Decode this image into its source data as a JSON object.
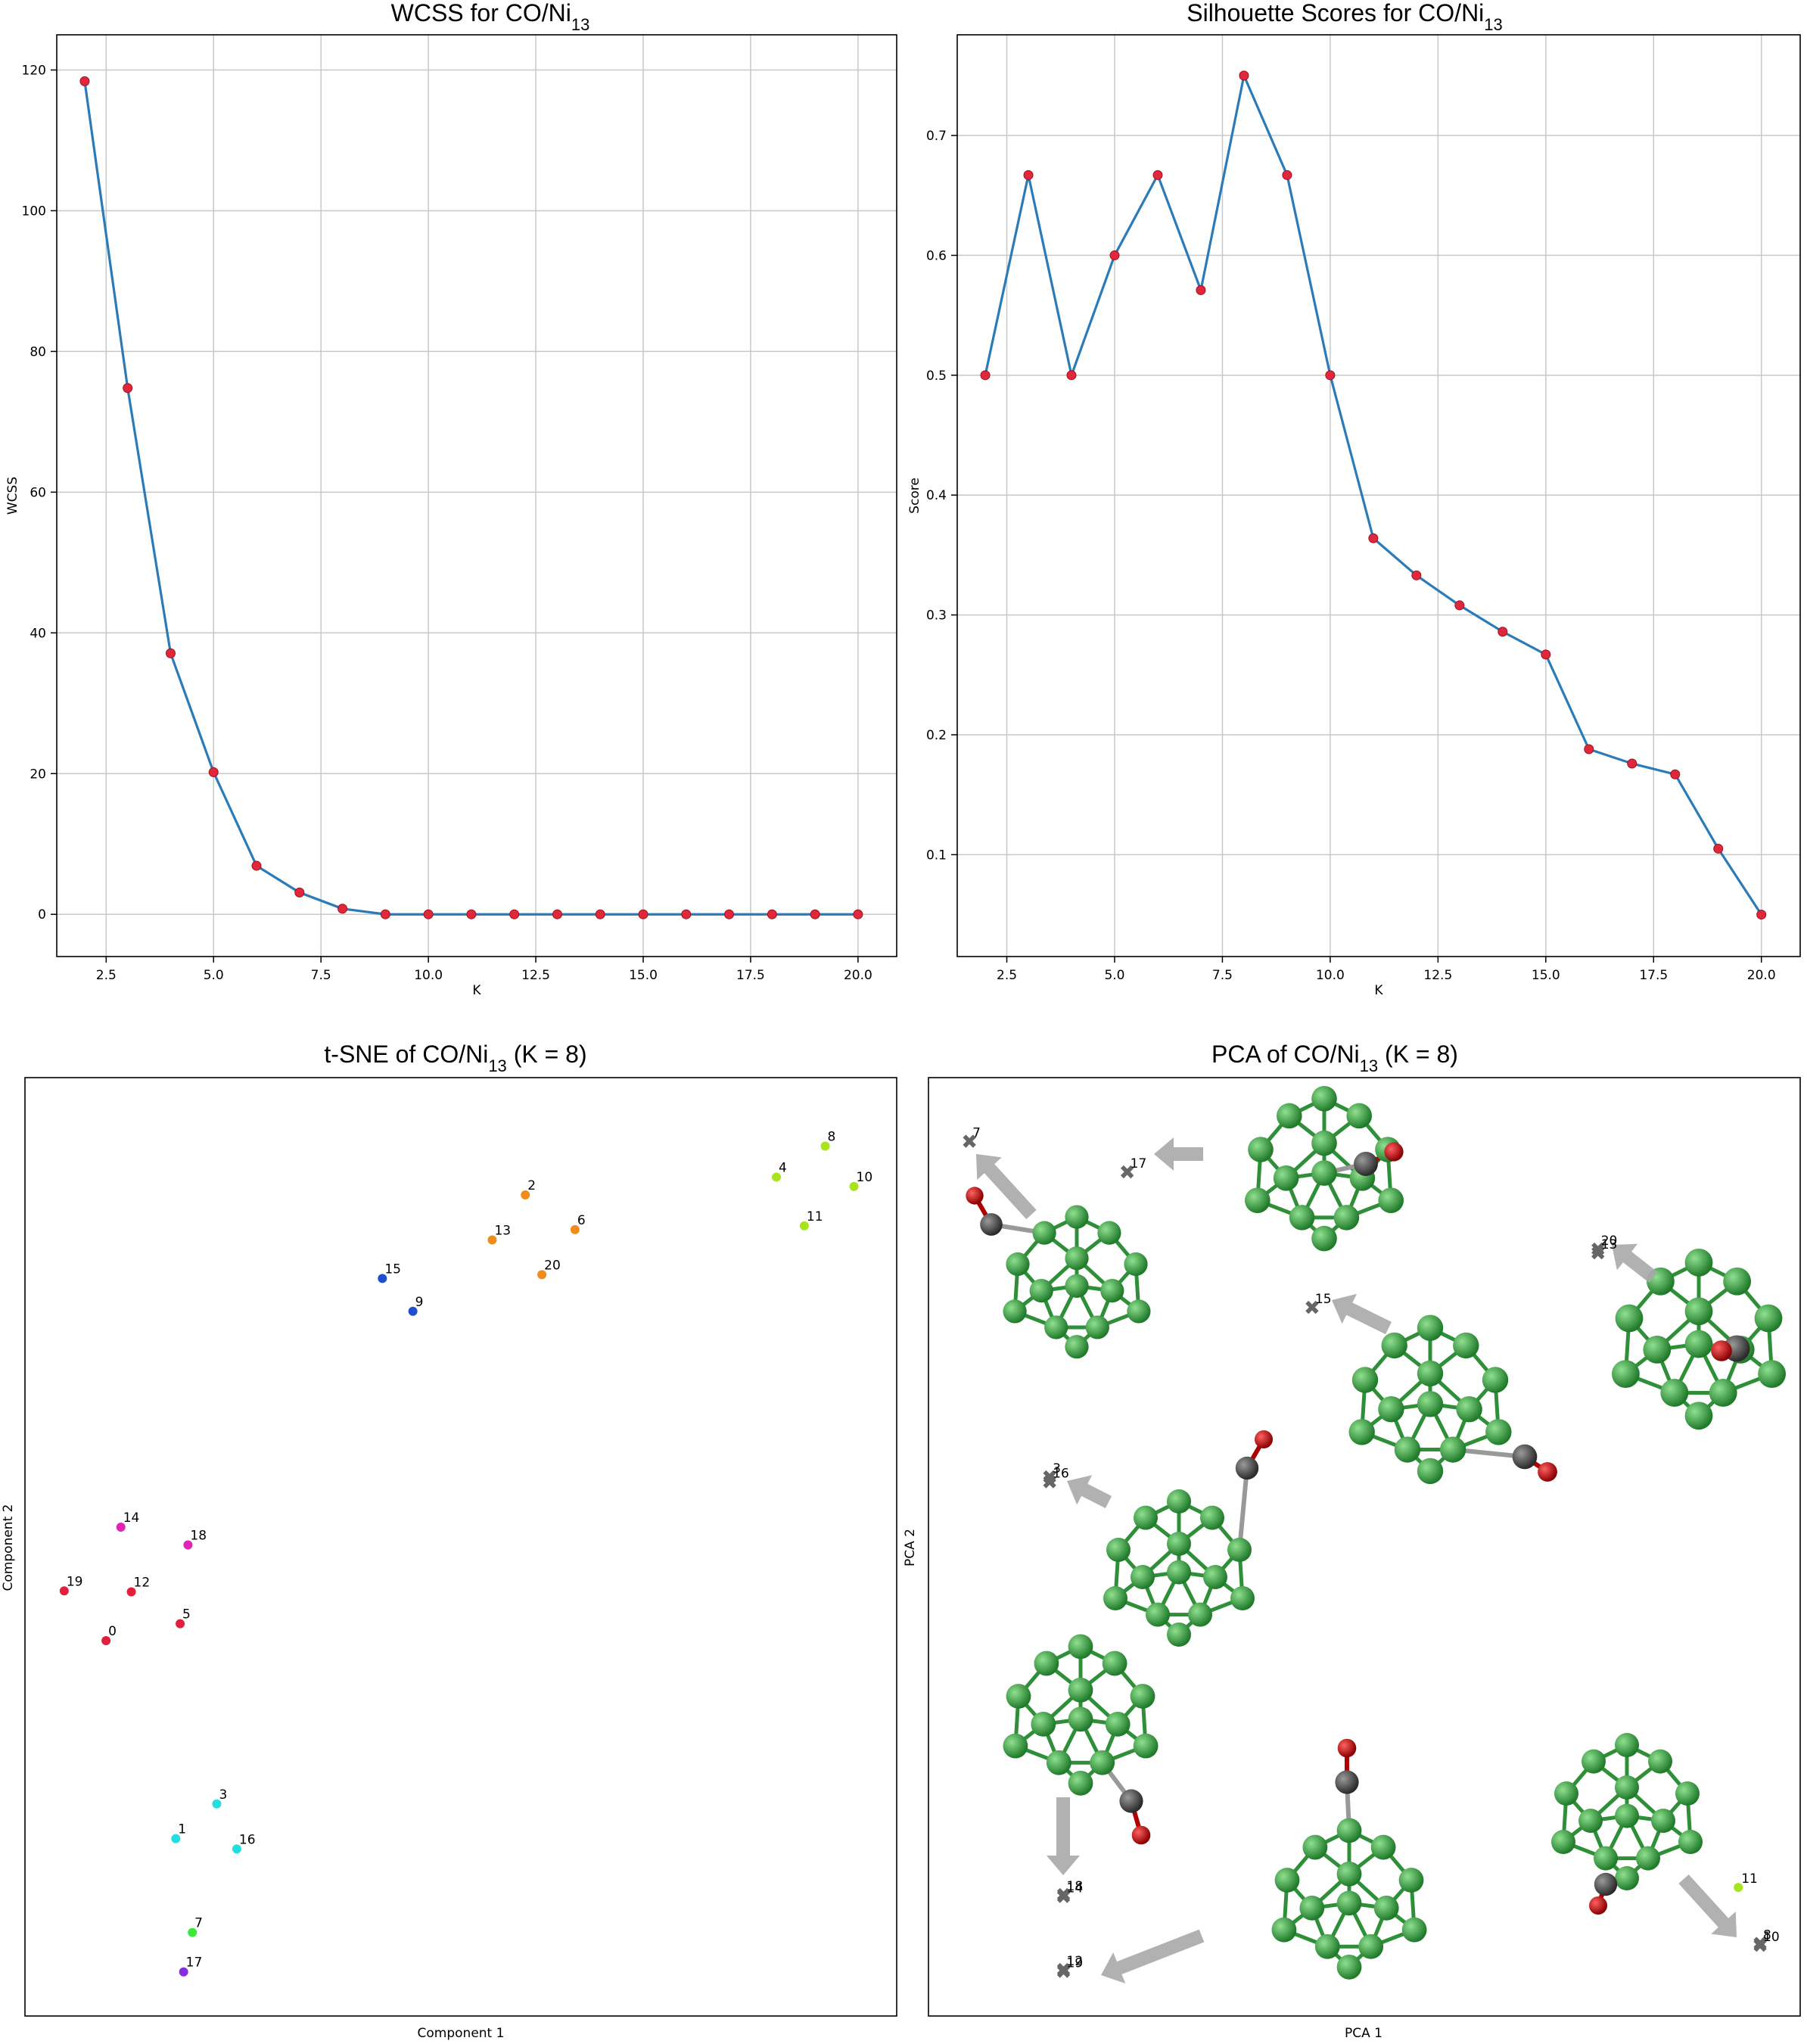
{
  "chart_data": [
    {
      "id": "wcss",
      "type": "line",
      "title_main": "WCSS for CO/Ni",
      "title_sub": "13",
      "title_suffix": "",
      "xlabel": "K",
      "ylabel": "WCSS",
      "xlim": [
        1.35,
        20.9
      ],
      "ylim": [
        -6,
        125
      ],
      "xticks": [
        "2.5",
        "5.0",
        "7.5",
        "10.0",
        "12.5",
        "15.0",
        "17.5",
        "20.0"
      ],
      "xtick_values": [
        2.5,
        5,
        7.5,
        10,
        12.5,
        15,
        17.5,
        20
      ],
      "yticks": [
        "0",
        "20",
        "40",
        "60",
        "80",
        "100",
        "120"
      ],
      "ytick_values": [
        0,
        20,
        40,
        60,
        80,
        100,
        120
      ],
      "grid": true,
      "line_color": "#2b7bb9",
      "marker_color": "#e0283c",
      "x": [
        2,
        3,
        4,
        5,
        6,
        7,
        8,
        9,
        10,
        11,
        12,
        13,
        14,
        15,
        16,
        17,
        18,
        19,
        20
      ],
      "values": [
        118.4,
        74.8,
        37.1,
        20.2,
        6.9,
        3.1,
        0.8,
        0,
        0,
        0,
        0,
        0,
        0,
        0,
        0,
        0,
        0,
        0,
        0
      ]
    },
    {
      "id": "silhouette",
      "type": "line",
      "title_main": "Silhouette Scores for CO/Ni",
      "title_sub": "13",
      "title_suffix": "",
      "xlabel": "K",
      "ylabel": "Score",
      "xlim": [
        1.35,
        20.9
      ],
      "ylim": [
        0.015,
        0.784
      ],
      "xticks": [
        "2.5",
        "5.0",
        "7.5",
        "10.0",
        "12.5",
        "15.0",
        "17.5",
        "20.0"
      ],
      "xtick_values": [
        2.5,
        5,
        7.5,
        10,
        12.5,
        15,
        17.5,
        20
      ],
      "yticks": [
        "0.1",
        "0.2",
        "0.3",
        "0.4",
        "0.5",
        "0.6",
        "0.7"
      ],
      "ytick_values": [
        0.1,
        0.2,
        0.3,
        0.4,
        0.5,
        0.6,
        0.7
      ],
      "grid": true,
      "line_color": "#2b7bb9",
      "marker_color": "#e0283c",
      "x": [
        2,
        3,
        4,
        5,
        6,
        7,
        8,
        9,
        10,
        11,
        12,
        13,
        14,
        15,
        16,
        17,
        18,
        19,
        20
      ],
      "values": [
        0.5,
        0.667,
        0.5,
        0.6,
        0.667,
        0.571,
        0.75,
        0.667,
        0.5,
        0.364,
        0.333,
        0.308,
        0.286,
        0.267,
        0.188,
        0.176,
        0.167,
        0.105,
        0.05
      ]
    },
    {
      "id": "tsne",
      "type": "scatter",
      "title_main": "t-SNE of CO/Ni",
      "title_sub": "13",
      "title_suffix": " (K = 8)",
      "xlabel": "Component 1",
      "ylabel": "Component 2",
      "xlim": [
        0,
        1
      ],
      "ylim": [
        0,
        1
      ],
      "grid": false,
      "points": [
        {
          "label": "0",
          "x": 0.093,
          "y": 0.4,
          "color": "#e0203c"
        },
        {
          "label": "1",
          "x": 0.173,
          "y": 0.189,
          "color": "#22dede"
        },
        {
          "label": "2",
          "x": 0.574,
          "y": 0.875,
          "color": "#f08c1a"
        },
        {
          "label": "3",
          "x": 0.22,
          "y": 0.226,
          "color": "#22dede"
        },
        {
          "label": "4",
          "x": 0.862,
          "y": 0.894,
          "color": "#a8e41c"
        },
        {
          "label": "5",
          "x": 0.178,
          "y": 0.418,
          "color": "#e0203c"
        },
        {
          "label": "6",
          "x": 0.631,
          "y": 0.838,
          "color": "#f08c1a"
        },
        {
          "label": "7",
          "x": 0.192,
          "y": 0.089,
          "color": "#3ce83c"
        },
        {
          "label": "8",
          "x": 0.918,
          "y": 0.927,
          "color": "#a8e41c"
        },
        {
          "label": "9",
          "x": 0.445,
          "y": 0.751,
          "color": "#1f4fcc"
        },
        {
          "label": "10",
          "x": 0.951,
          "y": 0.884,
          "color": "#a8e41c"
        },
        {
          "label": "11",
          "x": 0.894,
          "y": 0.842,
          "color": "#a8e41c"
        },
        {
          "label": "12",
          "x": 0.122,
          "y": 0.452,
          "color": "#e0203c"
        },
        {
          "label": "13",
          "x": 0.536,
          "y": 0.827,
          "color": "#f08c1a"
        },
        {
          "label": "14",
          "x": 0.11,
          "y": 0.521,
          "color": "#e024b8"
        },
        {
          "label": "15",
          "x": 0.41,
          "y": 0.786,
          "color": "#1f4fcc"
        },
        {
          "label": "16",
          "x": 0.243,
          "y": 0.178,
          "color": "#22dede"
        },
        {
          "label": "17",
          "x": 0.182,
          "y": 0.047,
          "color": "#8a2be2"
        },
        {
          "label": "18",
          "x": 0.187,
          "y": 0.502,
          "color": "#e024b8"
        },
        {
          "label": "19",
          "x": 0.045,
          "y": 0.453,
          "color": "#e0203c"
        },
        {
          "label": "20",
          "x": 0.593,
          "y": 0.79,
          "color": "#f08c1a"
        }
      ]
    },
    {
      "id": "pca",
      "type": "scatter",
      "title_main": "PCA of CO/Ni",
      "title_sub": "13",
      "title_suffix": " (K = 8)",
      "xlabel": "PCA 1",
      "ylabel": "PCA 2",
      "xlim": [
        0,
        1
      ],
      "ylim": [
        0,
        1
      ],
      "grid": false,
      "points": [
        {
          "label": "7",
          "x": 0.047,
          "y": 0.932,
          "color": "#555555"
        },
        {
          "label": "17",
          "x": 0.228,
          "y": 0.899,
          "color": "#555555"
        },
        {
          "label": "20",
          "x": 0.768,
          "y": 0.817,
          "color": "#555555"
        },
        {
          "label": "13",
          "x": 0.768,
          "y": 0.813,
          "color": "#555555"
        },
        {
          "label": "15",
          "x": 0.44,
          "y": 0.755,
          "color": "#555555"
        },
        {
          "label": "3",
          "x": 0.139,
          "y": 0.574,
          "color": "#555555"
        },
        {
          "label": "16",
          "x": 0.139,
          "y": 0.569,
          "color": "#555555"
        },
        {
          "label": "18",
          "x": 0.155,
          "y": 0.129,
          "color": "#555555"
        },
        {
          "label": "14",
          "x": 0.155,
          "y": 0.127,
          "color": "#555555"
        },
        {
          "label": "12",
          "x": 0.155,
          "y": 0.049,
          "color": "#555555"
        },
        {
          "label": "19",
          "x": 0.155,
          "y": 0.047,
          "color": "#555555"
        },
        {
          "label": "11",
          "x": 0.929,
          "y": 0.137,
          "color": "#a8e41c"
        },
        {
          "label": "8",
          "x": 0.954,
          "y": 0.077,
          "color": "#555555"
        },
        {
          "label": "10",
          "x": 0.954,
          "y": 0.075,
          "color": "#555555"
        }
      ]
    }
  ]
}
